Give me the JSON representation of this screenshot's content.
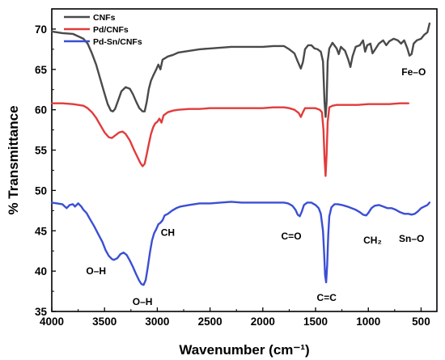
{
  "chart_data": {
    "type": "line",
    "title": "",
    "xlabel": "Wavenumber (cm⁻¹)",
    "ylabel": "% Transmittance",
    "xlim": [
      4000,
      350
    ],
    "ylim": [
      35,
      72.5
    ],
    "x_reversed": true,
    "grid": false,
    "legend_position": "top-left",
    "xticks": [
      4000,
      3500,
      3000,
      2500,
      2000,
      1500,
      1000,
      500
    ],
    "yticks": [
      35,
      40,
      45,
      50,
      55,
      60,
      65,
      70
    ],
    "series": [
      {
        "name": "CNFs",
        "color": "#4a4a4a",
        "points": [
          [
            4000,
            69.7
          ],
          [
            3900,
            69.5
          ],
          [
            3800,
            69.4
          ],
          [
            3750,
            69.1
          ],
          [
            3700,
            68.8
          ],
          [
            3660,
            68.2
          ],
          [
            3620,
            67.0
          ],
          [
            3580,
            65.6
          ],
          [
            3540,
            63.8
          ],
          [
            3500,
            62.0
          ],
          [
            3470,
            60.7
          ],
          [
            3440,
            59.9
          ],
          [
            3420,
            59.8
          ],
          [
            3400,
            60.1
          ],
          [
            3370,
            61.2
          ],
          [
            3340,
            62.3
          ],
          [
            3300,
            62.8
          ],
          [
            3260,
            62.6
          ],
          [
            3230,
            61.9
          ],
          [
            3200,
            61.0
          ],
          [
            3170,
            60.2
          ],
          [
            3140,
            59.8
          ],
          [
            3120,
            59.8
          ],
          [
            3100,
            61.0
          ],
          [
            3080,
            62.6
          ],
          [
            3060,
            63.6
          ],
          [
            3040,
            64.2
          ],
          [
            3010,
            65.0
          ],
          [
            2990,
            65.6
          ],
          [
            2970,
            65.0
          ],
          [
            2950,
            66.2
          ],
          [
            2900,
            66.6
          ],
          [
            2850,
            66.8
          ],
          [
            2800,
            67.1
          ],
          [
            2700,
            67.3
          ],
          [
            2600,
            67.5
          ],
          [
            2500,
            67.6
          ],
          [
            2400,
            67.7
          ],
          [
            2300,
            67.8
          ],
          [
            2200,
            67.8
          ],
          [
            2100,
            67.8
          ],
          [
            2000,
            67.8
          ],
          [
            1900,
            67.9
          ],
          [
            1800,
            67.9
          ],
          [
            1750,
            67.5
          ],
          [
            1700,
            67.0
          ],
          [
            1670,
            66.0
          ],
          [
            1640,
            65.1
          ],
          [
            1620,
            65.9
          ],
          [
            1600,
            67.5
          ],
          [
            1570,
            68.0
          ],
          [
            1540,
            68.0
          ],
          [
            1510,
            67.6
          ],
          [
            1480,
            67.5
          ],
          [
            1450,
            67.2
          ],
          [
            1430,
            66.0
          ],
          [
            1415,
            61.0
          ],
          [
            1405,
            59.1
          ],
          [
            1395,
            61.0
          ],
          [
            1385,
            66.0
          ],
          [
            1370,
            67.6
          ],
          [
            1340,
            68.3
          ],
          [
            1300,
            67.6
          ],
          [
            1280,
            66.9
          ],
          [
            1260,
            67.8
          ],
          [
            1220,
            67.3
          ],
          [
            1190,
            66.2
          ],
          [
            1170,
            65.3
          ],
          [
            1150,
            66.6
          ],
          [
            1120,
            67.8
          ],
          [
            1080,
            68.0
          ],
          [
            1050,
            68.6
          ],
          [
            1030,
            67.2
          ],
          [
            1010,
            68.0
          ],
          [
            980,
            68.2
          ],
          [
            960,
            67.0
          ],
          [
            940,
            67.4
          ],
          [
            900,
            68.2
          ],
          [
            860,
            68.6
          ],
          [
            830,
            68.0
          ],
          [
            800,
            68.5
          ],
          [
            760,
            68.8
          ],
          [
            720,
            68.6
          ],
          [
            690,
            68.2
          ],
          [
            660,
            68.6
          ],
          [
            630,
            67.6
          ],
          [
            610,
            66.7
          ],
          [
            590,
            66.9
          ],
          [
            570,
            68.2
          ],
          [
            540,
            68.6
          ],
          [
            500,
            68.8
          ],
          [
            470,
            69.3
          ],
          [
            440,
            69.6
          ],
          [
            420,
            70.7
          ]
        ]
      },
      {
        "name": "Pd/CNFs",
        "color": "#e23b3b",
        "points": [
          [
            4000,
            60.8
          ],
          [
            3900,
            60.8
          ],
          [
            3800,
            60.7
          ],
          [
            3750,
            60.6
          ],
          [
            3700,
            60.5
          ],
          [
            3660,
            60.2
          ],
          [
            3620,
            59.7
          ],
          [
            3580,
            59.0
          ],
          [
            3540,
            58.1
          ],
          [
            3500,
            57.2
          ],
          [
            3460,
            56.6
          ],
          [
            3430,
            56.5
          ],
          [
            3400,
            56.8
          ],
          [
            3360,
            57.2
          ],
          [
            3330,
            57.3
          ],
          [
            3300,
            57.0
          ],
          [
            3260,
            56.2
          ],
          [
            3220,
            55.0
          ],
          [
            3190,
            54.2
          ],
          [
            3160,
            53.4
          ],
          [
            3140,
            53.0
          ],
          [
            3120,
            53.3
          ],
          [
            3100,
            54.5
          ],
          [
            3080,
            55.8
          ],
          [
            3060,
            57.0
          ],
          [
            3040,
            57.8
          ],
          [
            3020,
            58.3
          ],
          [
            3000,
            58.5
          ],
          [
            2980,
            58.9
          ],
          [
            2960,
            58.4
          ],
          [
            2940,
            59.3
          ],
          [
            2900,
            59.7
          ],
          [
            2850,
            59.9
          ],
          [
            2800,
            60.0
          ],
          [
            2700,
            60.1
          ],
          [
            2600,
            60.1
          ],
          [
            2500,
            60.2
          ],
          [
            2400,
            60.2
          ],
          [
            2300,
            60.2
          ],
          [
            2200,
            60.2
          ],
          [
            2100,
            60.2
          ],
          [
            2000,
            60.2
          ],
          [
            1900,
            60.3
          ],
          [
            1800,
            60.3
          ],
          [
            1750,
            60.2
          ],
          [
            1700,
            60.0
          ],
          [
            1660,
            59.6
          ],
          [
            1640,
            59.1
          ],
          [
            1620,
            59.7
          ],
          [
            1600,
            60.2
          ],
          [
            1560,
            60.2
          ],
          [
            1500,
            60.2
          ],
          [
            1460,
            60.0
          ],
          [
            1440,
            59.7
          ],
          [
            1425,
            57.5
          ],
          [
            1415,
            54.0
          ],
          [
            1405,
            51.8
          ],
          [
            1395,
            54.5
          ],
          [
            1385,
            58.5
          ],
          [
            1370,
            60.3
          ],
          [
            1340,
            60.5
          ],
          [
            1300,
            60.6
          ],
          [
            1200,
            60.6
          ],
          [
            1100,
            60.6
          ],
          [
            1000,
            60.7
          ],
          [
            900,
            60.7
          ],
          [
            800,
            60.7
          ],
          [
            700,
            60.8
          ],
          [
            620,
            60.8
          ]
        ]
      },
      {
        "name": "Pd-Sn/CNFs",
        "color": "#3a4fd4",
        "points": [
          [
            4000,
            48.5
          ],
          [
            3950,
            48.4
          ],
          [
            3900,
            48.3
          ],
          [
            3860,
            47.8
          ],
          [
            3830,
            48.2
          ],
          [
            3800,
            48.3
          ],
          [
            3780,
            48.0
          ],
          [
            3750,
            48.4
          ],
          [
            3720,
            48.0
          ],
          [
            3700,
            47.6
          ],
          [
            3670,
            47.2
          ],
          [
            3640,
            46.5
          ],
          [
            3600,
            45.6
          ],
          [
            3560,
            44.6
          ],
          [
            3520,
            43.6
          ],
          [
            3490,
            42.6
          ],
          [
            3460,
            41.9
          ],
          [
            3430,
            41.5
          ],
          [
            3410,
            41.4
          ],
          [
            3380,
            41.6
          ],
          [
            3350,
            42.1
          ],
          [
            3320,
            42.3
          ],
          [
            3290,
            42.0
          ],
          [
            3260,
            41.3
          ],
          [
            3230,
            40.5
          ],
          [
            3200,
            39.6
          ],
          [
            3170,
            38.8
          ],
          [
            3150,
            38.4
          ],
          [
            3130,
            38.3
          ],
          [
            3110,
            38.9
          ],
          [
            3090,
            40.5
          ],
          [
            3070,
            42.3
          ],
          [
            3050,
            43.8
          ],
          [
            3030,
            44.7
          ],
          [
            3010,
            45.2
          ],
          [
            2990,
            45.8
          ],
          [
            2970,
            46.0
          ],
          [
            2950,
            46.3
          ],
          [
            2930,
            46.9
          ],
          [
            2900,
            47.1
          ],
          [
            2860,
            47.5
          ],
          [
            2820,
            47.8
          ],
          [
            2780,
            48.0
          ],
          [
            2700,
            48.2
          ],
          [
            2600,
            48.4
          ],
          [
            2500,
            48.4
          ],
          [
            2400,
            48.5
          ],
          [
            2300,
            48.6
          ],
          [
            2200,
            48.5
          ],
          [
            2100,
            48.5
          ],
          [
            2000,
            48.5
          ],
          [
            1900,
            48.5
          ],
          [
            1800,
            48.5
          ],
          [
            1760,
            48.4
          ],
          [
            1720,
            48.1
          ],
          [
            1690,
            47.6
          ],
          [
            1670,
            47.0
          ],
          [
            1650,
            46.8
          ],
          [
            1630,
            47.4
          ],
          [
            1610,
            48.2
          ],
          [
            1580,
            48.5
          ],
          [
            1540,
            48.5
          ],
          [
            1500,
            48.2
          ],
          [
            1470,
            47.8
          ],
          [
            1450,
            47.1
          ],
          [
            1430,
            45.0
          ],
          [
            1420,
            42.5
          ],
          [
            1410,
            39.5
          ],
          [
            1400,
            38.6
          ],
          [
            1390,
            40.8
          ],
          [
            1380,
            44.5
          ],
          [
            1370,
            46.8
          ],
          [
            1350,
            47.9
          ],
          [
            1320,
            48.3
          ],
          [
            1290,
            48.3
          ],
          [
            1250,
            48.2
          ],
          [
            1200,
            48.0
          ],
          [
            1160,
            47.8
          ],
          [
            1120,
            47.6
          ],
          [
            1080,
            47.3
          ],
          [
            1050,
            47.0
          ],
          [
            1020,
            46.9
          ],
          [
            1000,
            47.2
          ],
          [
            970,
            47.8
          ],
          [
            940,
            48.1
          ],
          [
            900,
            48.2
          ],
          [
            860,
            48.0
          ],
          [
            820,
            47.8
          ],
          [
            780,
            47.8
          ],
          [
            740,
            47.6
          ],
          [
            700,
            47.3
          ],
          [
            660,
            47.1
          ],
          [
            620,
            47.1
          ],
          [
            590,
            47.0
          ],
          [
            560,
            47.1
          ],
          [
            530,
            47.4
          ],
          [
            500,
            47.8
          ],
          [
            470,
            48.0
          ],
          [
            440,
            48.2
          ],
          [
            420,
            48.5
          ]
        ]
      }
    ],
    "annotations": [
      {
        "text": "Fe–O",
        "x": 570,
        "y": 64.3
      },
      {
        "text": "CH",
        "x": 2900,
        "y": 44.4
      },
      {
        "text": "C=O",
        "x": 1730,
        "y": 43.9
      },
      {
        "text": "CH₂",
        "x": 960,
        "y": 43.4
      },
      {
        "text": "Sn–O",
        "x": 590,
        "y": 43.6
      },
      {
        "text": "O–H",
        "x": 3580,
        "y": 39.6
      },
      {
        "text": "O–H",
        "x": 3140,
        "y": 35.8
      },
      {
        "text": "C=C",
        "x": 1395,
        "y": 36.3
      }
    ]
  }
}
